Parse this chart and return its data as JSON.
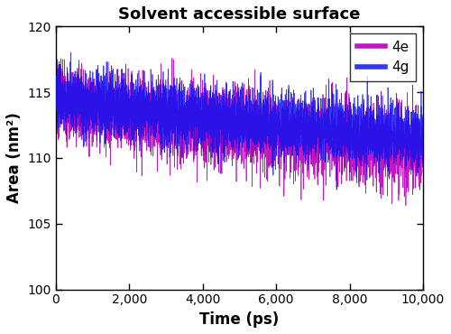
{
  "title": "Solvent accessible surface",
  "xlabel": "Time (ps)",
  "ylabel": "Area (nm²)",
  "xlim": [
    0,
    10000
  ],
  "ylim": [
    100,
    120
  ],
  "xticks": [
    0,
    2000,
    4000,
    6000,
    8000,
    10000
  ],
  "xtick_labels": [
    "0",
    "2,000",
    "4,000",
    "6,000",
    "8,000",
    "10,000"
  ],
  "yticks": [
    100,
    105,
    110,
    115,
    120
  ],
  "color_4e": "#BB00BB",
  "color_4g": "#1111EE",
  "legend_labels": [
    "4e",
    "4g"
  ],
  "n_points": 5000,
  "seed_4e": 7,
  "seed_4g": 13,
  "mean_start_4e": 113.0,
  "mean_end_4e": 110.5,
  "mean_start_4g": 113.5,
  "mean_end_4g": 111.5,
  "noise_std_4e": 1.3,
  "noise_std_4g": 1.1,
  "title_fontsize": 13,
  "label_fontsize": 12,
  "tick_fontsize": 10,
  "legend_fontsize": 11,
  "linewidth_4e": 0.5,
  "linewidth_4g": 0.5,
  "figsize": [
    5.0,
    3.7
  ],
  "dpi": 100
}
